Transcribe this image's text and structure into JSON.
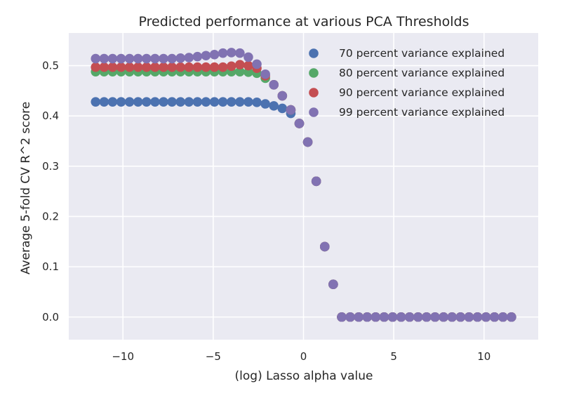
{
  "chart_data": {
    "type": "scatter",
    "title": "Predicted performance at various PCA Thresholds",
    "xlabel": "(log) Lasso alpha value",
    "ylabel": "Average 5-fold CV R^2 score",
    "xlim": [
      -13,
      13
    ],
    "ylim": [
      -0.045,
      0.565
    ],
    "xticks": [
      -10,
      -5,
      0,
      5,
      10
    ],
    "xtick_labels": [
      "−10",
      "−5",
      "0",
      "5",
      "10"
    ],
    "yticks": [
      0.0,
      0.1,
      0.2,
      0.3,
      0.4,
      0.5
    ],
    "ytick_labels": [
      "0.0",
      "0.1",
      "0.2",
      "0.3",
      "0.4",
      "0.5"
    ],
    "grid": true,
    "legend_position": "top-right",
    "background_color": "#eaeaf2",
    "x": [
      -11.513,
      -11.043,
      -10.573,
      -10.103,
      -9.633,
      -9.163,
      -8.693,
      -8.223,
      -7.753,
      -7.283,
      -6.813,
      -6.343,
      -5.873,
      -5.403,
      -4.933,
      -4.463,
      -3.993,
      -3.523,
      -3.053,
      -2.583,
      -2.113,
      -1.643,
      -1.173,
      -0.703,
      -0.233,
      0.237,
      0.707,
      1.177,
      1.647,
      2.117,
      2.587,
      3.057,
      3.527,
      3.997,
      4.467,
      4.937,
      5.407,
      5.877,
      6.347,
      6.817,
      7.287,
      7.757,
      8.227,
      8.697,
      9.167,
      9.637,
      10.107,
      10.577,
      11.047,
      11.517
    ],
    "series": [
      {
        "name": "70 percent variance explained",
        "color": "#4c72b0",
        "values": [
          0.428,
          0.428,
          0.428,
          0.428,
          0.428,
          0.428,
          0.428,
          0.428,
          0.428,
          0.428,
          0.428,
          0.428,
          0.428,
          0.428,
          0.428,
          0.428,
          0.428,
          0.428,
          0.428,
          0.427,
          0.424,
          0.42,
          0.415,
          0.405,
          0.385,
          0.348,
          0.27,
          0.14,
          0.065,
          0.0,
          0.0,
          0.0,
          0.0,
          0.0,
          0.0,
          0.0,
          0.0,
          0.0,
          0.0,
          0.0,
          0.0,
          0.0,
          0.0,
          0.0,
          0.0,
          0.0,
          0.0,
          0.0,
          0.0,
          0.0
        ]
      },
      {
        "name": "80 percent variance explained",
        "color": "#55a868",
        "values": [
          0.488,
          0.488,
          0.488,
          0.488,
          0.488,
          0.488,
          0.488,
          0.488,
          0.488,
          0.488,
          0.488,
          0.488,
          0.488,
          0.488,
          0.488,
          0.488,
          0.488,
          0.488,
          0.487,
          0.485,
          0.475,
          0.462,
          0.44,
          0.412,
          0.385,
          0.348,
          0.27,
          0.14,
          0.065,
          0.0,
          0.0,
          0.0,
          0.0,
          0.0,
          0.0,
          0.0,
          0.0,
          0.0,
          0.0,
          0.0,
          0.0,
          0.0,
          0.0,
          0.0,
          0.0,
          0.0,
          0.0,
          0.0,
          0.0,
          0.0
        ]
      },
      {
        "name": "90 percent variance explained",
        "color": "#c44e52",
        "values": [
          0.497,
          0.497,
          0.497,
          0.497,
          0.497,
          0.497,
          0.497,
          0.497,
          0.497,
          0.497,
          0.497,
          0.497,
          0.497,
          0.497,
          0.497,
          0.497,
          0.499,
          0.502,
          0.5,
          0.495,
          0.48,
          0.462,
          0.44,
          0.412,
          0.385,
          0.348,
          0.27,
          0.14,
          0.065,
          0.0,
          0.0,
          0.0,
          0.0,
          0.0,
          0.0,
          0.0,
          0.0,
          0.0,
          0.0,
          0.0,
          0.0,
          0.0,
          0.0,
          0.0,
          0.0,
          0.0,
          0.0,
          0.0,
          0.0,
          0.0
        ]
      },
      {
        "name": "99 percent variance explained",
        "color": "#8172b2",
        "values": [
          0.514,
          0.514,
          0.514,
          0.514,
          0.514,
          0.514,
          0.514,
          0.514,
          0.514,
          0.514,
          0.515,
          0.516,
          0.518,
          0.52,
          0.522,
          0.525,
          0.526,
          0.525,
          0.517,
          0.503,
          0.483,
          0.462,
          0.44,
          0.412,
          0.385,
          0.348,
          0.27,
          0.14,
          0.065,
          0.0,
          0.0,
          0.0,
          0.0,
          0.0,
          0.0,
          0.0,
          0.0,
          0.0,
          0.0,
          0.0,
          0.0,
          0.0,
          0.0,
          0.0,
          0.0,
          0.0,
          0.0,
          0.0,
          0.0,
          0.0
        ]
      }
    ]
  }
}
